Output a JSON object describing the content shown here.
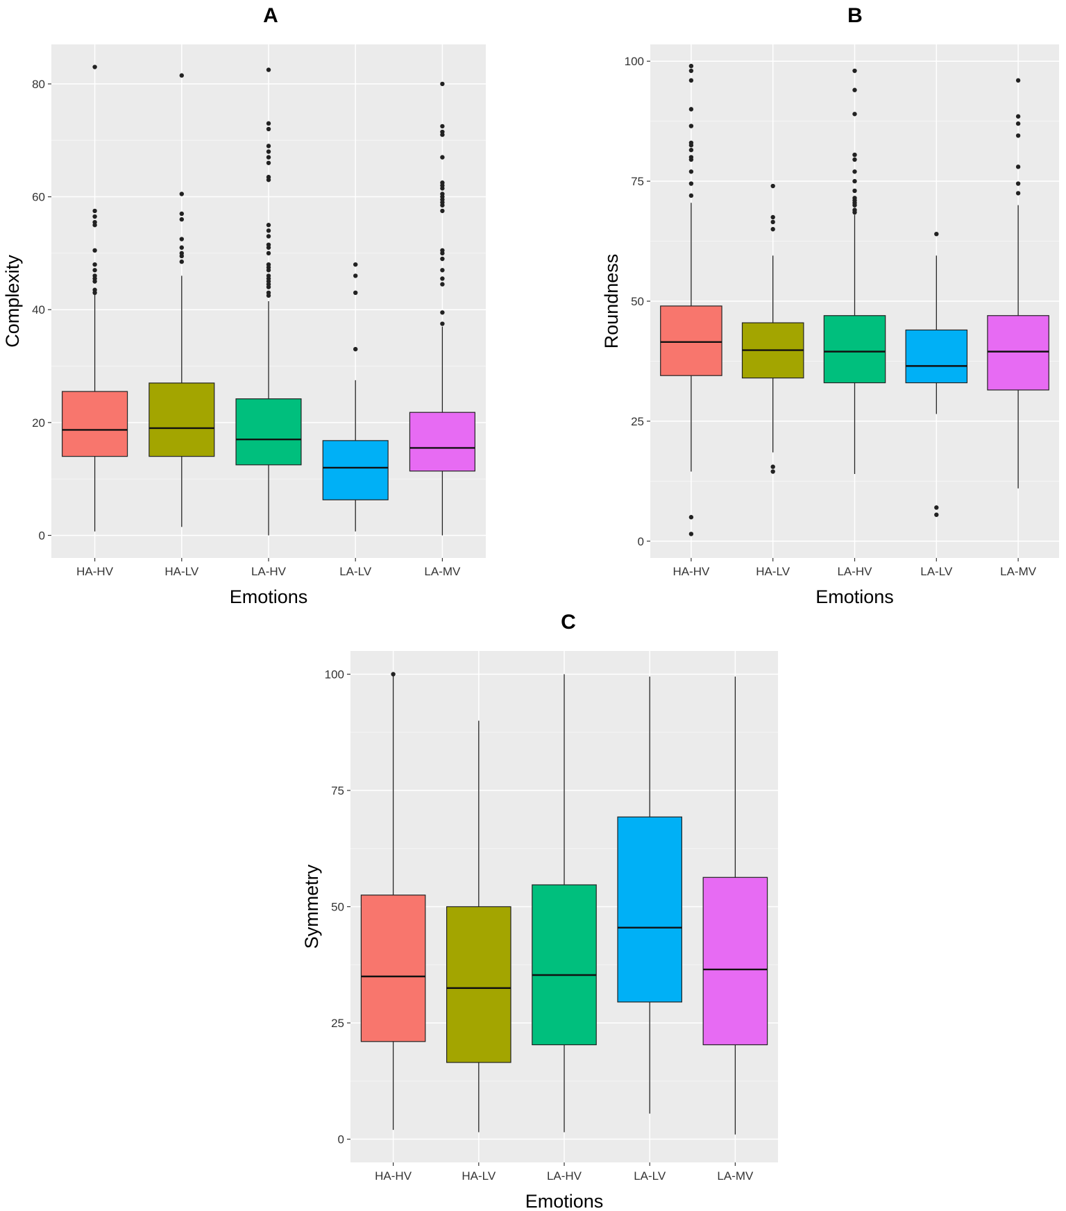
{
  "colors": {
    "panel_bg": "#EBEBEB",
    "grid_major": "#FFFFFF",
    "grid_minor": "#F5F5F5",
    "box_stroke": "#222222",
    "outlier": "#222222",
    "HA-HV": "#F8766D",
    "HA-LV": "#A3A500",
    "LA-HV": "#00BF7D",
    "LA-LV": "#00B0F6",
    "LA-MV": "#E76BF3"
  },
  "chart_data": [
    {
      "panel": "A",
      "type": "boxplot",
      "title": "A",
      "xlabel": "Emotions",
      "ylabel": "Complexity",
      "ylim": [
        -4,
        87
      ],
      "yticks": [
        0,
        20,
        40,
        60,
        80
      ],
      "ytick_labels": [
        "0",
        "20",
        "40",
        "60",
        "80"
      ],
      "categories": [
        "HA-HV",
        "HA-LV",
        "LA-HV",
        "LA-LV",
        "LA-MV"
      ],
      "boxes": [
        {
          "name": "HA-HV",
          "whisker_low": 0.7,
          "q1": 14.0,
          "median": 18.7,
          "q3": 25.5,
          "whisker_high": 43.0,
          "outliers": [
            83.0,
            57.5,
            56.5,
            55.5,
            55.0,
            50.5,
            48.0,
            47.0,
            46.0,
            45.5,
            45.0,
            43.5,
            43.0
          ]
        },
        {
          "name": "HA-LV",
          "whisker_low": 1.5,
          "q1": 14.0,
          "median": 19.0,
          "q3": 27.0,
          "whisker_high": 46.0,
          "outliers": [
            81.5,
            60.5,
            57.0,
            56.0,
            52.5,
            51.0,
            50.0,
            49.5,
            48.5
          ]
        },
        {
          "name": "LA-HV",
          "whisker_low": 0.0,
          "q1": 12.5,
          "median": 17.0,
          "q3": 24.2,
          "whisker_high": 41.5,
          "outliers": [
            82.5,
            73.0,
            72.0,
            69.0,
            68.0,
            67.0,
            66.0,
            63.5,
            63.0,
            55.0,
            54.0,
            53.0,
            51.5,
            51.0,
            50.0,
            48.0,
            47.5,
            47.0,
            46.0,
            45.5,
            45.0,
            44.5,
            44.0,
            43.0,
            42.5
          ]
        },
        {
          "name": "LA-LV",
          "whisker_low": 0.7,
          "q1": 6.3,
          "median": 12.0,
          "q3": 16.8,
          "whisker_high": 27.5,
          "outliers": [
            48.0,
            46.0,
            43.0,
            33.0
          ]
        },
        {
          "name": "LA-MV",
          "whisker_low": 0.0,
          "q1": 11.4,
          "median": 15.5,
          "q3": 21.8,
          "whisker_high": 37.0,
          "outliers": [
            80.0,
            72.5,
            71.5,
            71.0,
            67.0,
            62.5,
            62.0,
            61.5,
            60.5,
            60.0,
            59.5,
            59.0,
            58.5,
            57.5,
            50.5,
            50.0,
            49.0,
            47.0,
            45.5,
            44.5,
            39.5,
            37.5
          ]
        }
      ]
    },
    {
      "panel": "B",
      "type": "boxplot",
      "title": "B",
      "xlabel": "Emotions",
      "ylabel": "Roundness",
      "ylim": [
        -3.5,
        103.5
      ],
      "yticks": [
        0,
        25,
        50,
        75,
        100
      ],
      "ytick_labels": [
        "0",
        "25",
        "50",
        "75",
        "100"
      ],
      "categories": [
        "HA-HV",
        "HA-LV",
        "LA-HV",
        "LA-LV",
        "LA-MV"
      ],
      "boxes": [
        {
          "name": "HA-HV",
          "whisker_low": 14.5,
          "q1": 34.5,
          "median": 41.5,
          "q3": 49.0,
          "whisker_high": 70.5,
          "outliers": [
            99.0,
            98.0,
            96.0,
            90.0,
            86.5,
            83.0,
            82.5,
            81.5,
            80.0,
            79.5,
            77.0,
            74.5,
            72.0,
            5.0,
            1.5
          ]
        },
        {
          "name": "HA-LV",
          "whisker_low": 18.5,
          "q1": 34.0,
          "median": 39.8,
          "q3": 45.5,
          "whisker_high": 59.5,
          "outliers": [
            74.0,
            67.5,
            66.5,
            65.0,
            15.5,
            14.5
          ]
        },
        {
          "name": "LA-HV",
          "whisker_low": 14.0,
          "q1": 33.0,
          "median": 39.5,
          "q3": 47.0,
          "whisker_high": 68.0,
          "outliers": [
            98.0,
            94.0,
            89.0,
            80.5,
            79.5,
            77.0,
            75.0,
            73.0,
            71.5,
            71.0,
            70.5,
            70.0,
            69.0,
            68.5
          ]
        },
        {
          "name": "LA-LV",
          "whisker_low": 26.5,
          "q1": 33.0,
          "median": 36.5,
          "q3": 44.0,
          "whisker_high": 59.5,
          "outliers": [
            64.0,
            7.0,
            5.5
          ]
        },
        {
          "name": "LA-MV",
          "whisker_low": 11.0,
          "q1": 31.5,
          "median": 39.5,
          "q3": 47.0,
          "whisker_high": 70.0,
          "outliers": [
            96.0,
            88.5,
            87.0,
            84.5,
            78.0,
            74.5,
            72.5
          ]
        }
      ]
    },
    {
      "panel": "C",
      "type": "boxplot",
      "title": "C",
      "xlabel": "Emotions",
      "ylabel": "Symmetry",
      "ylim": [
        -5,
        105
      ],
      "yticks": [
        0,
        25,
        50,
        75,
        100
      ],
      "ytick_labels": [
        "0",
        "25",
        "50",
        "75",
        "100"
      ],
      "categories": [
        "HA-HV",
        "HA-LV",
        "LA-HV",
        "LA-LV",
        "LA-MV"
      ],
      "boxes": [
        {
          "name": "HA-HV",
          "whisker_low": 2.0,
          "q1": 21.0,
          "median": 35.0,
          "q3": 52.5,
          "whisker_high": 100.0,
          "outliers": [
            100.0
          ]
        },
        {
          "name": "HA-LV",
          "whisker_low": 1.5,
          "q1": 16.5,
          "median": 32.5,
          "q3": 50.0,
          "whisker_high": 90.0,
          "outliers": []
        },
        {
          "name": "LA-HV",
          "whisker_low": 1.5,
          "q1": 20.3,
          "median": 35.3,
          "q3": 54.7,
          "whisker_high": 100.0,
          "outliers": []
        },
        {
          "name": "LA-LV",
          "whisker_low": 5.5,
          "q1": 29.5,
          "median": 45.5,
          "q3": 69.3,
          "whisker_high": 99.5,
          "outliers": []
        },
        {
          "name": "LA-MV",
          "whisker_low": 1.0,
          "q1": 20.3,
          "median": 36.5,
          "q3": 56.3,
          "whisker_high": 99.5,
          "outliers": []
        }
      ]
    }
  ]
}
